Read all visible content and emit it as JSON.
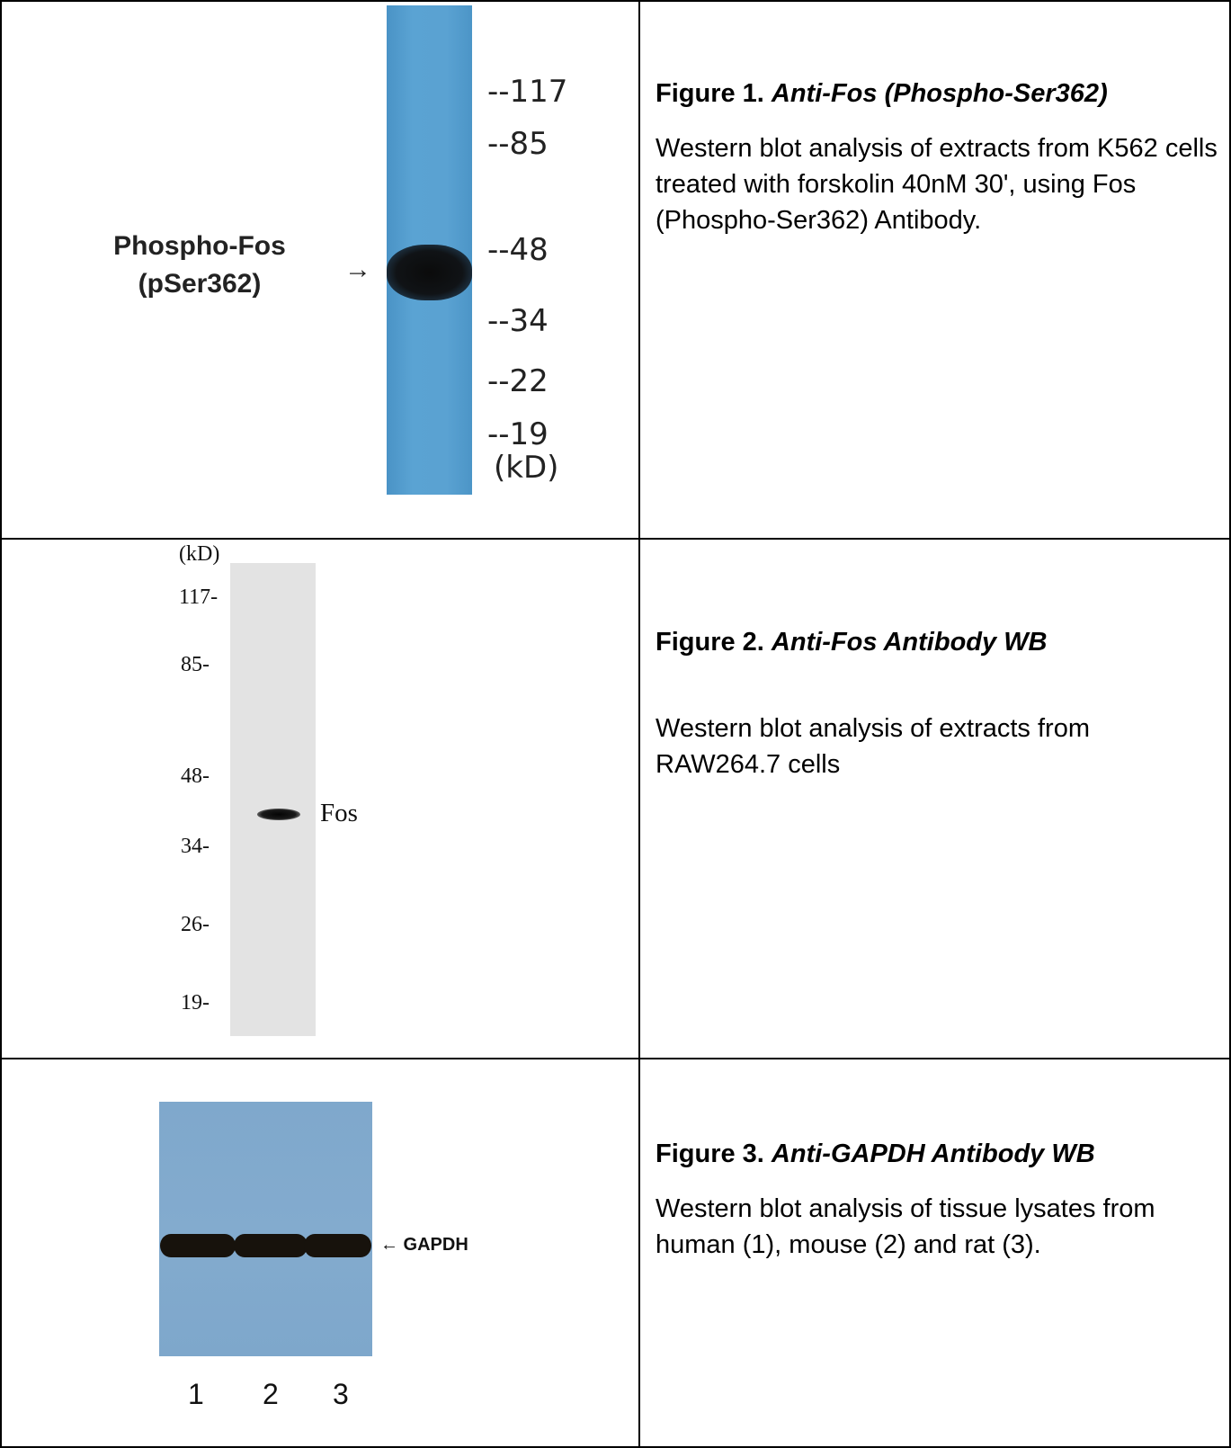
{
  "figures": [
    {
      "title_prefix": "Figure 1.",
      "title_italic": "Anti-Fos (Phospho-Ser362)",
      "body": "Western blot analysis of extracts from K562 cells treated with forskolin 40nM 30', using Fos (Phospho-Ser362) Antibody.",
      "blot": {
        "markers": [
          "--117",
          "--85",
          "--48",
          "--34",
          "--22",
          "--19"
        ],
        "unit": "(kD)",
        "label_line1": "Phospho-Fos",
        "label_line2": "(pSer362)",
        "arrow": "→",
        "lane_color": "#5aa2d2"
      }
    },
    {
      "title_prefix": "Figure 2.",
      "title_italic": "Anti-Fos Antibody WB",
      "body": "Western blot analysis of extracts from RAW264.7 cells",
      "blot": {
        "unit": "(kD)",
        "markers": [
          "117-",
          "85-",
          "48-",
          "34-",
          "26-",
          "19-"
        ],
        "band_label": "Fos",
        "lane_color": "#e3e3e3"
      }
    },
    {
      "title_prefix": "Figure 3.",
      "title_italic": "Anti-GAPDH Antibody WB",
      "body": "Western blot analysis of tissue lysates from human (1), mouse (2) and rat (3).",
      "blot": {
        "band_label": "← GAPDH",
        "lanes": [
          "1",
          "2",
          "3"
        ],
        "blot_color": "#83abce"
      }
    }
  ]
}
